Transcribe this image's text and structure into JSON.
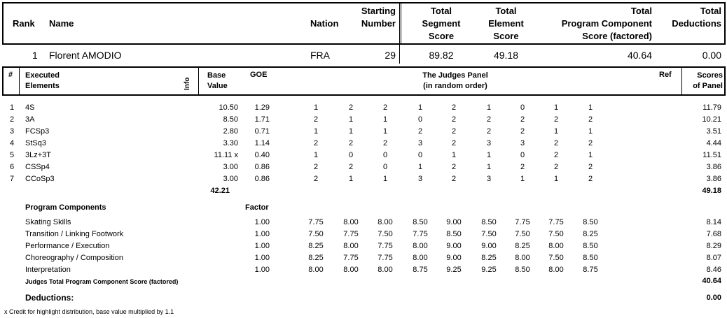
{
  "header": {
    "rank": "Rank",
    "name": "Name",
    "nation": "Nation",
    "starting_number": [
      "Starting",
      "Number"
    ],
    "total_segment_score": [
      "Total",
      "Segment",
      "Score"
    ],
    "total_element_score": [
      "Total",
      "Element",
      "Score"
    ],
    "total_pcs": [
      "Total",
      "Program  Component",
      "Score (factored)"
    ],
    "total_deductions": [
      "Total",
      "Deductions"
    ]
  },
  "athlete": {
    "rank": "1",
    "name": "Florent AMODIO",
    "nation": "FRA",
    "starting_number": "29",
    "tss": "89.82",
    "tes": "49.18",
    "pcs": "40.64",
    "deductions": "0.00"
  },
  "elements_header": {
    "num": "#",
    "executed": [
      "Executed",
      "Elements"
    ],
    "info": "Info",
    "base_value": [
      "Base",
      "Value"
    ],
    "goe": "GOE",
    "judges_panel": [
      "The Judges Panel",
      "(in random order)"
    ],
    "ref": "Ref",
    "scores_of_panel": [
      "Scores",
      "of Panel"
    ]
  },
  "elements": [
    {
      "n": "1",
      "el": "4S",
      "bv": "10.50",
      "goe": "1.29",
      "j": [
        "1",
        "2",
        "2",
        "1",
        "2",
        "1",
        "0",
        "1",
        "1"
      ],
      "score": "11.79"
    },
    {
      "n": "2",
      "el": "3A",
      "bv": "8.50",
      "goe": "1.71",
      "j": [
        "2",
        "1",
        "1",
        "0",
        "2",
        "2",
        "2",
        "2",
        "2"
      ],
      "score": "10.21"
    },
    {
      "n": "3",
      "el": "FCSp3",
      "bv": "2.80",
      "goe": "0.71",
      "j": [
        "1",
        "1",
        "1",
        "2",
        "2",
        "2",
        "2",
        "1",
        "1"
      ],
      "score": "3.51"
    },
    {
      "n": "4",
      "el": "StSq3",
      "bv": "3.30",
      "goe": "1.14",
      "j": [
        "2",
        "2",
        "2",
        "3",
        "2",
        "3",
        "3",
        "2",
        "2"
      ],
      "score": "4.44"
    },
    {
      "n": "5",
      "el": "3Lz+3T",
      "bv": "11.11 x",
      "goe": "0.40",
      "j": [
        "1",
        "0",
        "0",
        "0",
        "1",
        "1",
        "0",
        "2",
        "1"
      ],
      "score": "11.51"
    },
    {
      "n": "6",
      "el": "CSSp4",
      "bv": "3.00",
      "goe": "0.86",
      "j": [
        "2",
        "2",
        "0",
        "1",
        "2",
        "1",
        "2",
        "2",
        "2"
      ],
      "score": "3.86"
    },
    {
      "n": "7",
      "el": "CCoSp3",
      "bv": "3.00",
      "goe": "0.86",
      "j": [
        "2",
        "1",
        "1",
        "3",
        "2",
        "3",
        "1",
        "1",
        "2"
      ],
      "score": "3.86"
    }
  ],
  "elements_total": {
    "bv": "42.21",
    "score": "49.18"
  },
  "program_components": {
    "title": "Program Components",
    "factor_label": "Factor",
    "rows": [
      {
        "name": "Skating Skills",
        "factor": "1.00",
        "j": [
          "7.75",
          "8.00",
          "8.00",
          "8.50",
          "9.00",
          "8.50",
          "7.75",
          "7.75",
          "8.50"
        ],
        "score": "8.14"
      },
      {
        "name": "Transition / Linking Footwork",
        "factor": "1.00",
        "j": [
          "7.50",
          "7.75",
          "7.50",
          "7.75",
          "8.50",
          "7.50",
          "7.50",
          "7.50",
          "8.25"
        ],
        "score": "7.68"
      },
      {
        "name": "Performance / Execution",
        "factor": "1.00",
        "j": [
          "8.25",
          "8.00",
          "7.75",
          "8.00",
          "9.00",
          "9.00",
          "8.25",
          "8.00",
          "8.50"
        ],
        "score": "8.29"
      },
      {
        "name": "Choreography / Composition",
        "factor": "1.00",
        "j": [
          "8.25",
          "7.75",
          "7.75",
          "8.00",
          "9.00",
          "8.25",
          "8.00",
          "7.50",
          "8.50"
        ],
        "score": "8.07"
      },
      {
        "name": "Interpretation",
        "factor": "1.00",
        "j": [
          "8.00",
          "8.00",
          "8.00",
          "8.75",
          "9.25",
          "9.25",
          "8.50",
          "8.00",
          "8.75"
        ],
        "score": "8.46"
      }
    ],
    "total_label": "Judges Total Program Component Score (factored)",
    "total": "40.64"
  },
  "deductions": {
    "label": "Deductions:",
    "value": "0.00"
  },
  "footnote": "x  Credit for highlight distribution, base value multiplied by 1.1"
}
